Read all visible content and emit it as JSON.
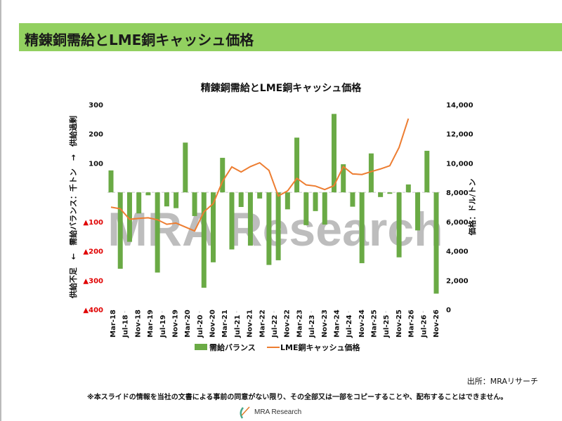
{
  "page": {
    "header_title": "精錬銅需給とLME銅キャッシュ価格",
    "source": "出所：MRAリサーチ",
    "disclaimer": "※本スライドの情報を当社の文書による事前の同意がない限り、その全部又は一部をコピーすることや、配布することはできません。",
    "logo_text": "MRA Research",
    "watermark": "MRA Research"
  },
  "colors": {
    "bar": "#6aaa45",
    "line": "#ed7d31",
    "header": "#92d060",
    "negative_tick": "#e00000"
  },
  "chart_data": {
    "type": "bar+line",
    "title": "精錬銅需給とLME銅キャッシュ価格",
    "ylabel_left": "供給不足　←　需給バランス：千トン　→　供給過剰",
    "ylabel_right": "価格：ドル/トン",
    "ylim_left": [
      -400,
      300
    ],
    "ylim_right": [
      0,
      14000
    ],
    "left_ticks": [
      {
        "value": 300,
        "label": "300"
      },
      {
        "value": 200,
        "label": "200"
      },
      {
        "value": 100,
        "label": "100"
      },
      {
        "value": -100,
        "label": "▲100"
      },
      {
        "value": -200,
        "label": "▲200"
      },
      {
        "value": -300,
        "label": "▲300"
      },
      {
        "value": -400,
        "label": "▲400"
      }
    ],
    "right_ticks": [
      "0",
      "2,000",
      "4,000",
      "6,000",
      "8,000",
      "10,000",
      "12,000",
      "14,000"
    ],
    "right_tick_values": [
      0,
      2000,
      4000,
      6000,
      8000,
      10000,
      12000,
      14000
    ],
    "x_tick_labels": [
      "Mar-18",
      "Jul-18",
      "Nov-18",
      "Mar-19",
      "Jul-19",
      "Nov-19",
      "Mar-20",
      "Jul-20",
      "Nov-20",
      "Mar-21",
      "Jul-21",
      "Nov-21",
      "Mar-22",
      "Jul-22",
      "Nov-22",
      "Mar-23",
      "Jul-23",
      "Nov-23",
      "Mar-24",
      "Jul-24",
      "Nov-24",
      "Mar-25",
      "Jul-25",
      "Nov-25",
      "Mar-26",
      "Jul-26",
      "Nov-26"
    ],
    "legend": [
      "需給バランス",
      "LME銅キャッシュ価格"
    ],
    "legend_position": "bottom",
    "series": [
      {
        "name": "需給バランス",
        "type": "bar",
        "axis": "left",
        "values": [
          75,
          -261,
          -169,
          -72,
          -10,
          -274,
          -48,
          -54,
          170,
          -81,
          -326,
          -239,
          118,
          -195,
          -50,
          -182,
          -21,
          -248,
          -232,
          -58,
          187,
          -112,
          -64,
          -110,
          268,
          96,
          -49,
          -242,
          133,
          -16,
          -5,
          -222,
          27,
          -130,
          142,
          -346
        ]
      },
      {
        "name": "LME銅キャッシュ価格",
        "type": "line",
        "axis": "right",
        "values": [
          6990,
          6880,
          6160,
          6220,
          6260,
          6130,
          5820,
          5900,
          5630,
          5360,
          6670,
          7230,
          8750,
          9740,
          9390,
          9760,
          10020,
          9500,
          7750,
          8100,
          8960,
          8510,
          8430,
          8190,
          8460,
          9760,
          9260,
          9220,
          9420,
          9600,
          9820,
          11070,
          13040
        ]
      }
    ]
  }
}
